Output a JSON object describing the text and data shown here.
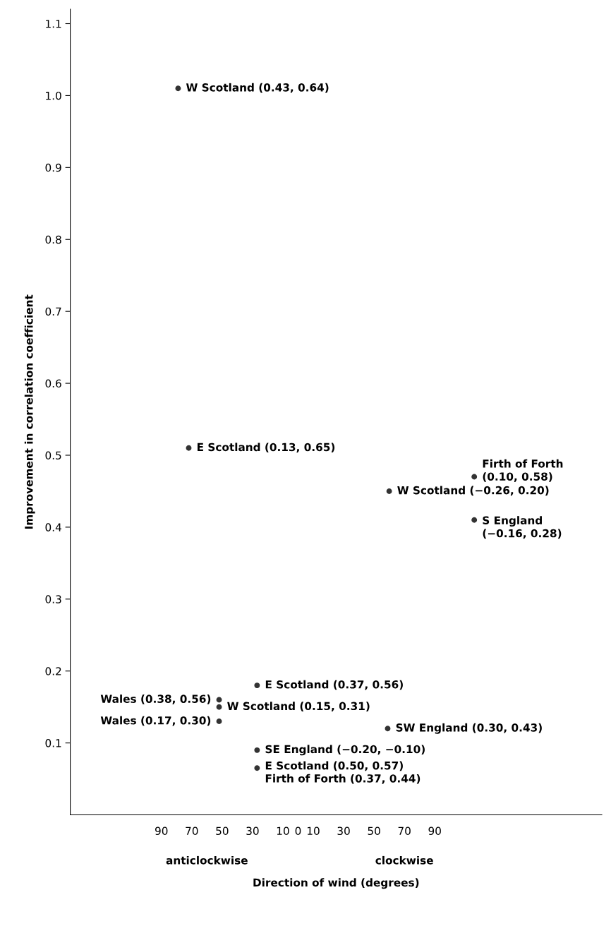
{
  "chart_data": {
    "type": "scatter",
    "xlabel": "Direction of wind (degrees)",
    "ylabel": "Improvement in correlation coefficient",
    "x": [
      -79,
      -72,
      116,
      60,
      116,
      -27,
      -52,
      -52,
      -52,
      59,
      -27,
      -27
    ],
    "values": [
      1.01,
      0.51,
      0.47,
      0.45,
      0.41,
      0.18,
      0.16,
      0.15,
      0.13,
      0.12,
      0.09,
      0.065
    ],
    "color": "#333333",
    "marker": "circle",
    "xlim": [
      -150,
      200
    ],
    "ylim": [
      0,
      1.12
    ],
    "xticks": [
      {
        "value": -90,
        "label": "90"
      },
      {
        "value": -70,
        "label": "70"
      },
      {
        "value": -50,
        "label": "50"
      },
      {
        "value": -30,
        "label": "30"
      },
      {
        "value": -10,
        "label": "10"
      },
      0,
      10,
      30,
      50,
      70,
      90
    ],
    "yticks": [
      0.1,
      0.2,
      0.3,
      0.4,
      0.5,
      0.6,
      0.7,
      0.8,
      0.9,
      {
        "value": 1.0,
        "label": "1.0"
      },
      1.1
    ],
    "grid": false,
    "annotations": [
      {
        "text": "W Scotland (0.43, 0.64)",
        "x": -79,
        "y": 1.01
      },
      {
        "text": "E Scotland (0.13, 0.65)",
        "x": -72,
        "y": 0.51
      },
      {
        "text": "Firth of Forth\n(0.10, 0.58)",
        "x": 116,
        "y": 0.47
      },
      {
        "text": "W Scotland (−0.26, 0.20)",
        "x": 60,
        "y": 0.45
      },
      {
        "text": "S England\n(−0.16, 0.28)",
        "x": 116,
        "y": 0.41
      },
      {
        "text": "E Scotland (0.37, 0.56)",
        "x": -27,
        "y": 0.18
      },
      {
        "text": "Wales (0.38, 0.56)",
        "x": -52,
        "y": 0.16
      },
      {
        "text": "W Scotland (0.15, 0.31)",
        "x": -52,
        "y": 0.15
      },
      {
        "text": "Wales (0.17, 0.30)",
        "x": -52,
        "y": 0.13
      },
      {
        "text": "SW England (0.30, 0.43)",
        "x": 59,
        "y": 0.12
      },
      {
        "text": "SE England (−0.20, −0.10)",
        "x": -27,
        "y": 0.09
      },
      {
        "text": "E Scotland (0.50, 0.57)\nFirth of Forth (0.37, 0.44)",
        "x": -27,
        "y": 0.065
      },
      "anticlockwise",
      "clockwise"
    ]
  }
}
